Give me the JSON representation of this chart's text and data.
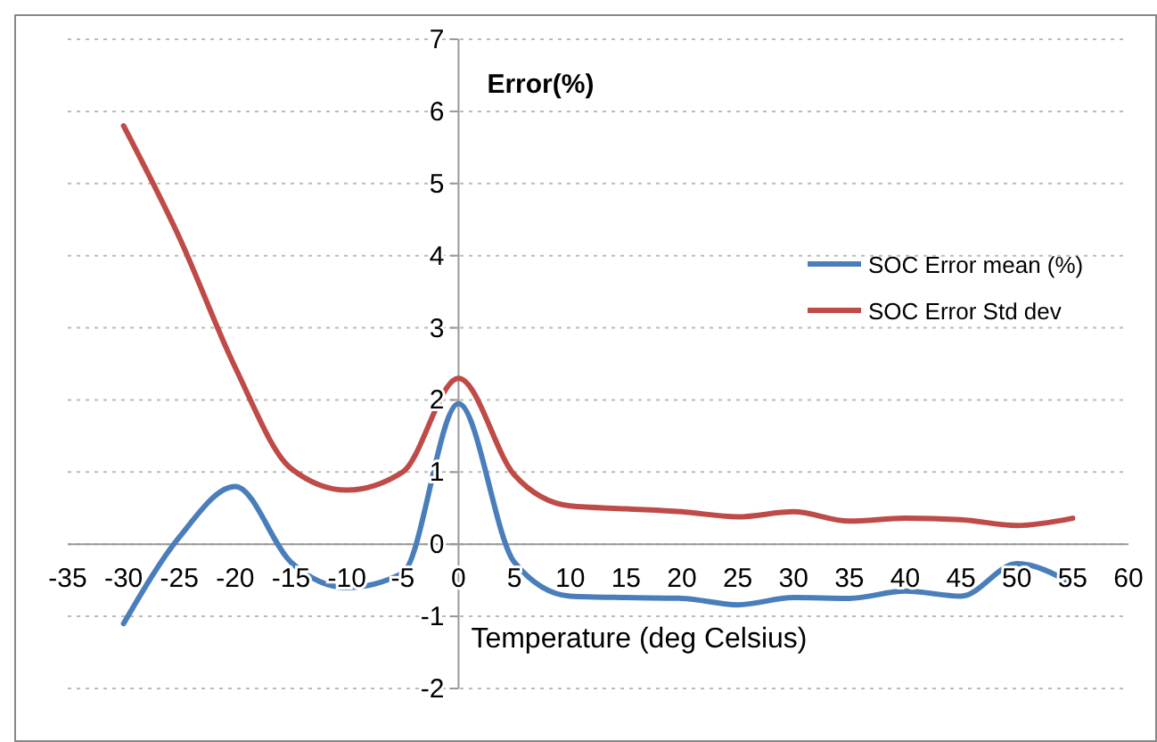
{
  "chart_data": {
    "type": "line",
    "ylabel": "Error(%)",
    "xlabel": "Temperature (deg Celsius)",
    "x": [
      -30,
      -25,
      -20,
      -15,
      -10,
      -5,
      0,
      5,
      10,
      15,
      20,
      25,
      30,
      35,
      40,
      45,
      50,
      55
    ],
    "series": [
      {
        "name": "SOC Error mean (%)",
        "color": "#4a7ebb",
        "values": [
          -1.1,
          0.1,
          0.8,
          -0.25,
          -0.6,
          -0.4,
          1.95,
          -0.25,
          -0.72,
          -0.74,
          -0.75,
          -0.84,
          -0.74,
          -0.75,
          -0.65,
          -0.72,
          -0.27,
          -0.55
        ]
      },
      {
        "name": "SOC Error Std dev",
        "color": "#be4b48",
        "values": [
          5.8,
          4.25,
          2.45,
          1.05,
          0.75,
          1.0,
          2.3,
          0.96,
          0.53,
          0.49,
          0.45,
          0.38,
          0.45,
          0.32,
          0.36,
          0.34,
          0.26,
          0.36
        ]
      }
    ],
    "xlim": [
      -35,
      60
    ],
    "xticks": [
      -35,
      -30,
      -25,
      -20,
      -15,
      -10,
      -5,
      0,
      5,
      10,
      15,
      20,
      25,
      30,
      35,
      40,
      45,
      50,
      55,
      60
    ],
    "ylim": [
      -2,
      7
    ],
    "yticks": [
      -2,
      -1,
      0,
      1,
      2,
      3,
      4,
      5,
      6,
      7
    ],
    "grid": "y",
    "legend": "right",
    "marker": "none",
    "line_style": "solid"
  }
}
